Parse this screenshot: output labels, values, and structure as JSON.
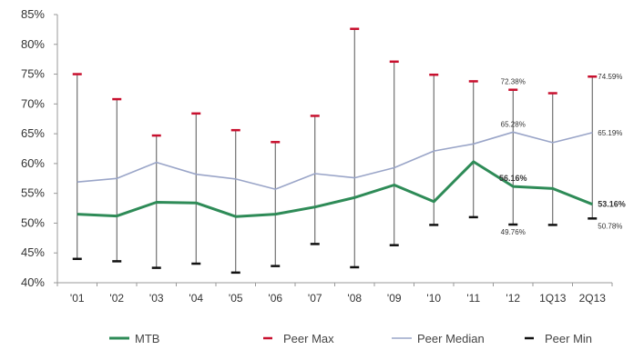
{
  "chart_data": {
    "type": "line",
    "title": "",
    "xlabel": "",
    "ylabel": "",
    "categories": [
      "'01",
      "'02",
      "'03",
      "'04",
      "'05",
      "'06",
      "'07",
      "'08",
      "'09",
      "'10",
      "'11",
      "'12",
      "1Q13",
      "2Q13"
    ],
    "ylim": [
      40,
      85
    ],
    "yticks": [
      40,
      45,
      50,
      55,
      60,
      65,
      70,
      75,
      80,
      85
    ],
    "y_tick_labels": [
      "40%",
      "45%",
      "50%",
      "55%",
      "60%",
      "65%",
      "70%",
      "75%",
      "80%",
      "85%"
    ],
    "grid": false,
    "legend_position": "bottom",
    "series": [
      {
        "name": "MTB",
        "color": "#2e8b57",
        "values": [
          51.5,
          51.2,
          53.5,
          53.4,
          51.1,
          51.5,
          52.7,
          54.3,
          56.4,
          53.6,
          60.3,
          56.16,
          55.8,
          53.16
        ]
      },
      {
        "name": "Peer Max",
        "color": "#c8102e",
        "values": [
          75.0,
          70.8,
          64.7,
          68.4,
          65.6,
          63.6,
          68.0,
          82.6,
          77.1,
          74.9,
          73.8,
          72.38,
          71.8,
          74.59
        ]
      },
      {
        "name": "Peer Median",
        "color": "#9aa5c8",
        "values": [
          56.9,
          57.5,
          60.2,
          58.2,
          57.4,
          55.7,
          58.3,
          57.6,
          59.3,
          62.1,
          63.3,
          65.28,
          63.5,
          65.19
        ]
      },
      {
        "name": "Peer Min",
        "color": "#111111",
        "values": [
          44.0,
          43.6,
          42.5,
          43.2,
          41.7,
          42.8,
          46.5,
          42.6,
          46.3,
          49.7,
          51.0,
          49.76,
          49.7,
          50.78
        ]
      }
    ],
    "annotations": [
      {
        "text": "72.38%",
        "category": "'12",
        "series": "Peer Max"
      },
      {
        "text": "65.28%",
        "category": "'12",
        "series": "Peer Median"
      },
      {
        "text": "56.16%",
        "category": "'12",
        "series": "MTB"
      },
      {
        "text": "49.76%",
        "category": "'12",
        "series": "Peer Min"
      },
      {
        "text": "74.59%",
        "category": "2Q13",
        "series": "Peer Max"
      },
      {
        "text": "65.19%",
        "category": "2Q13",
        "series": "Peer Median"
      },
      {
        "text": "53.16%",
        "category": "2Q13",
        "series": "MTB"
      },
      {
        "text": "50.78%",
        "category": "2Q13",
        "series": "Peer Min"
      }
    ]
  }
}
